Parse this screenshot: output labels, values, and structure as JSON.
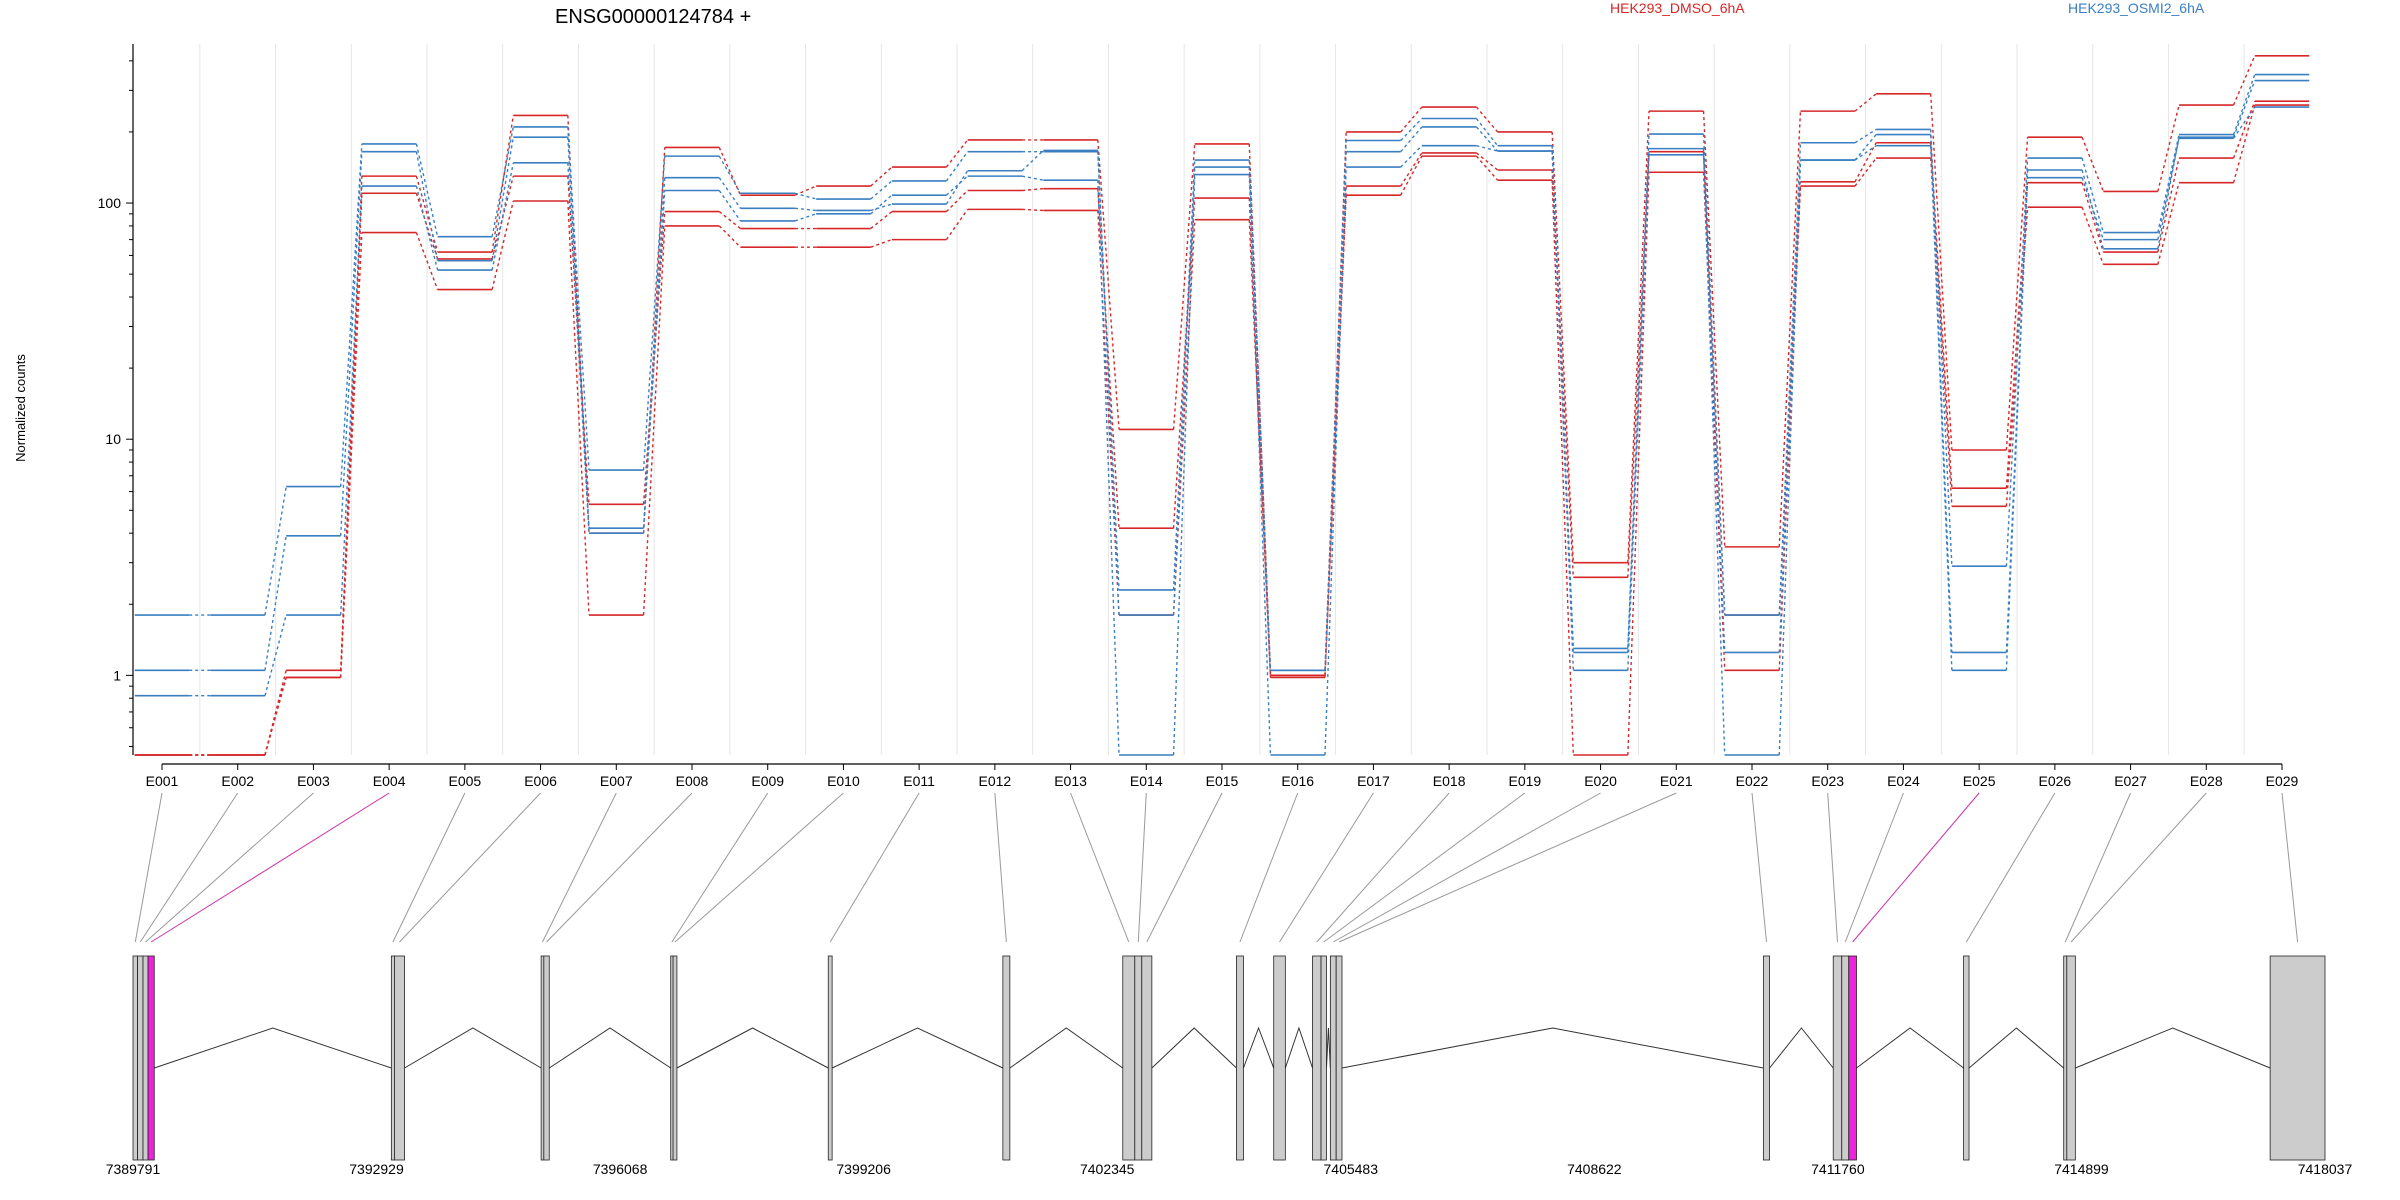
{
  "chart_data": {
    "type": "line",
    "title": "ENSG00000124784 +",
    "ylabel": "Normalized counts",
    "xlabel": "",
    "yscale": "log",
    "ylim": [
      0.4,
      600
    ],
    "y_ticks": [
      "1",
      "10",
      "100"
    ],
    "y_tick_values": [
      1,
      10,
      100
    ],
    "grid": "vertical",
    "legend_placement": "top",
    "categories": [
      "E001",
      "E002",
      "E003",
      "E004",
      "E005",
      "E006",
      "E007",
      "E008",
      "E009",
      "E010",
      "E011",
      "E012",
      "E013",
      "E014",
      "E015",
      "E016",
      "E017",
      "E018",
      "E019",
      "E020",
      "E021",
      "E022",
      "E023",
      "E024",
      "E025",
      "E026",
      "E027",
      "E028",
      "E029"
    ],
    "series": [
      {
        "name": "HEK293_DMSO_6hA",
        "color": "#d62728",
        "replicate": 1,
        "values": [
          0.46,
          0.46,
          1.05,
          130,
          62,
          235,
          4.0,
          172,
          108,
          118,
          142,
          185,
          185,
          11,
          178,
          1.0,
          200,
          255,
          200,
          3.0,
          245,
          3.5,
          245,
          290,
          9.0,
          190,
          112,
          260,
          420
        ]
      },
      {
        "name": "HEK293_DMSO_6hA",
        "color": "#d62728",
        "replicate": 2,
        "values": [
          0.46,
          0.46,
          0.98,
          110,
          58,
          130,
          5.3,
          92,
          78,
          78,
          92,
          113,
          115,
          4.2,
          105,
          1.0,
          118,
          163,
          138,
          2.6,
          165,
          1.8,
          123,
          180,
          6.2,
          122,
          62,
          155,
          270
        ]
      },
      {
        "name": "HEK293_DMSO_6hA",
        "color": "#d62728",
        "replicate": 3,
        "values": [
          0.46,
          0.46,
          0.98,
          75,
          43,
          102,
          1.8,
          80,
          65,
          65,
          70,
          94,
          93,
          1.8,
          85,
          0.98,
          108,
          158,
          125,
          0.46,
          135,
          1.05,
          118,
          155,
          5.2,
          96,
          55,
          122,
          260
        ]
      },
      {
        "name": "HEK293_OSMI2_6hA",
        "color": "#3a7fc1",
        "replicate": 1,
        "values": [
          1.8,
          1.8,
          6.3,
          178,
          72,
          210,
          7.4,
          158,
          110,
          104,
          124,
          165,
          165,
          2.3,
          152,
          1.05,
          184,
          228,
          175,
          1.3,
          196,
          1.8,
          180,
          205,
          2.9,
          155,
          75,
          195,
          350
        ]
      },
      {
        "name": "HEK293_OSMI2_6hA",
        "color": "#3a7fc1",
        "replicate": 2,
        "values": [
          1.05,
          1.05,
          3.9,
          165,
          57,
          190,
          4.2,
          128,
          95,
          93,
          99,
          137,
          167,
          1.8,
          142,
          1.05,
          165,
          210,
          166,
          1.25,
          170,
          1.25,
          152,
          195,
          1.25,
          138,
          64,
          190,
          330
        ]
      },
      {
        "name": "HEK293_OSMI2_6hA",
        "color": "#3a7fc1",
        "replicate": 3,
        "values": [
          0.82,
          0.82,
          1.8,
          118,
          52,
          148,
          4.0,
          113,
          84,
          90,
          108,
          130,
          125,
          0.46,
          132,
          0.46,
          142,
          175,
          166,
          1.05,
          160,
          0.46,
          152,
          175,
          1.05,
          128,
          70,
          188,
          255
        ]
      }
    ],
    "gene_model": {
      "coordinate_ticks": [
        "7389791",
        "7392929",
        "7396068",
        "7399206",
        "7402345",
        "7405483",
        "7408622",
        "7411760",
        "7414899",
        "7418037"
      ],
      "coordinate_tick_values": [
        7389791,
        7392929,
        7396068,
        7399206,
        7402345,
        7405483,
        7408622,
        7411760,
        7414899,
        7418037
      ],
      "highlight_color": "#ee22dd",
      "exon_color": "#cccccc",
      "highlighted_bins": [
        "E004",
        "E025"
      ],
      "bins": [
        {
          "id": "E001",
          "start": 7389791,
          "end": 7389850
        },
        {
          "id": "E002",
          "start": 7389850,
          "end": 7389920
        },
        {
          "id": "E003",
          "start": 7389920,
          "end": 7389985
        },
        {
          "id": "E004",
          "start": 7389985,
          "end": 7390065
        },
        {
          "id": "E005",
          "start": 7393120,
          "end": 7393160
        },
        {
          "id": "E006",
          "start": 7393160,
          "end": 7393290
        },
        {
          "id": "E007",
          "start": 7395050,
          "end": 7395085
        },
        {
          "id": "E008",
          "start": 7395085,
          "end": 7395155
        },
        {
          "id": "E009",
          "start": 7396720,
          "end": 7396750
        },
        {
          "id": "E010",
          "start": 7396750,
          "end": 7396800
        },
        {
          "id": "E011",
          "start": 7398750,
          "end": 7398800
        },
        {
          "id": "E012",
          "start": 7401000,
          "end": 7401090
        },
        {
          "id": "E013",
          "start": 7402545,
          "end": 7402700
        },
        {
          "id": "E014",
          "start": 7402700,
          "end": 7402790
        },
        {
          "id": "E015",
          "start": 7402790,
          "end": 7402920
        },
        {
          "id": "E016",
          "start": 7404010,
          "end": 7404100
        },
        {
          "id": "E017",
          "start": 7404490,
          "end": 7404640
        },
        {
          "id": "E018",
          "start": 7404990,
          "end": 7405100
        },
        {
          "id": "E019",
          "start": 7405100,
          "end": 7405170
        },
        {
          "id": "E020",
          "start": 7405220,
          "end": 7405295
        },
        {
          "id": "E021",
          "start": 7405295,
          "end": 7405370
        },
        {
          "id": "E022",
          "start": 7410800,
          "end": 7410880
        },
        {
          "id": "E023",
          "start": 7411700,
          "end": 7411810
        },
        {
          "id": "E024",
          "start": 7411810,
          "end": 7411900
        },
        {
          "id": "E025",
          "start": 7411900,
          "end": 7412000
        },
        {
          "id": "E026",
          "start": 7413380,
          "end": 7413450
        },
        {
          "id": "E027",
          "start": 7414670,
          "end": 7414710
        },
        {
          "id": "E028",
          "start": 7414710,
          "end": 7414820
        },
        {
          "id": "E029",
          "start": 7417330,
          "end": 7418037
        }
      ]
    }
  }
}
